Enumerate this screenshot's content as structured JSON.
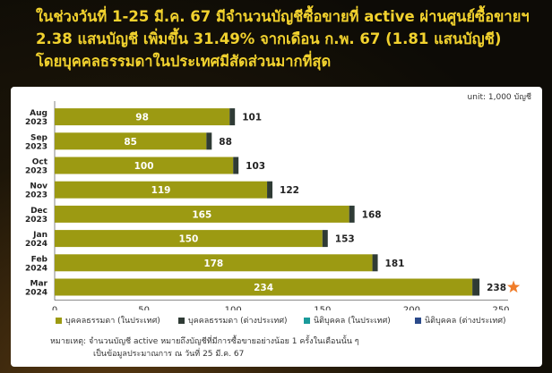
{
  "headline": {
    "line1": "ในช่วงวันที่ 1-25 มี.ค. 67 มีจำนวนบัญชีซื้อขายที่ active ผ่านศูนย์ซื้อขายฯ",
    "line2": "2.38 แสนบัญชี เพิ่มขึ้น 31.49% จากเดือน ก.พ. 67 (1.81 แสนบัญชี)",
    "line3": "โดยบุคคลธรรมดาในประเทศมีสัดส่วนมากที่สุด"
  },
  "chart_data": {
    "type": "bar",
    "orientation": "horizontal",
    "stacked": true,
    "unit": "unit: 1,000 บัญชี",
    "categories": [
      [
        "Aug",
        "2023"
      ],
      [
        "Sep",
        "2023"
      ],
      [
        "Oct",
        "2023"
      ],
      [
        "Nov",
        "2023"
      ],
      [
        "Dec",
        "2023"
      ],
      [
        "Jan",
        "2024"
      ],
      [
        "Feb",
        "2024"
      ],
      [
        "Mar",
        "2024"
      ]
    ],
    "series": [
      {
        "name": "บุคคลธรรมดา (ในประเทศ)",
        "color": "#9c9a12",
        "values": [
          98,
          85,
          100,
          119,
          165,
          150,
          178,
          234
        ]
      },
      {
        "name": "บุคคลธรรมดา (ต่างประเทศ)",
        "color": "#2f3b35",
        "values": [
          3,
          3,
          3,
          3,
          3,
          3,
          3,
          4
        ]
      },
      {
        "name": "นิติบุคคล (ในประเทศ)",
        "color": "#1a9a9a",
        "values": [
          0,
          0,
          0,
          0,
          0,
          0,
          0,
          0
        ]
      },
      {
        "name": "นิติบุคคล (ต่างประเทศ)",
        "color": "#2b4a8a",
        "values": [
          0,
          0,
          0,
          0,
          0,
          0,
          0,
          0
        ]
      }
    ],
    "totals": [
      101,
      88,
      103,
      122,
      168,
      153,
      181,
      238
    ],
    "xlim": [
      0,
      250
    ],
    "xticks": [
      0,
      50,
      100,
      150,
      200,
      250
    ],
    "grid": false,
    "legend_position": "bottom",
    "highlight": {
      "category_index": 7,
      "marker": "star",
      "color": "#f07d2a"
    }
  },
  "footnote": {
    "line1": "หมายเหตุ: จำนวนบัญชี active หมายถึงบัญชีที่มีการซื้อขายอย่างน้อย 1 ครั้งในเดือนนั้น ๆ",
    "line2": "เป็นข้อมูลประมาณการ ณ วันที่ 25 มี.ค. 67"
  }
}
